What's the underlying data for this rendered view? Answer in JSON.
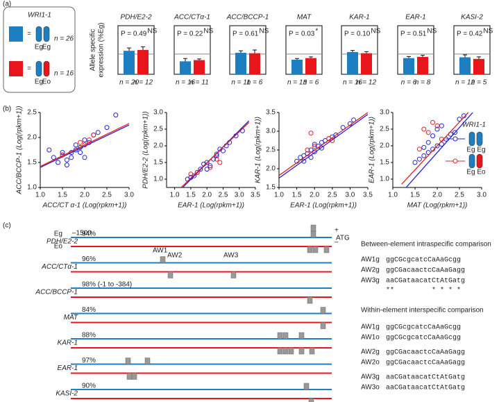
{
  "panel_labels": [
    "(a)",
    "(b)",
    "(c)"
  ],
  "legend_a": {
    "title": "WRI1-1",
    "items": [
      {
        "eq": "=",
        "n": "n = 26",
        "alleles": [
          "Eg",
          "Eg"
        ],
        "colors": [
          "#1d7fc1",
          "#1d7fc1"
        ],
        "swatch": "#1d7fc1"
      },
      {
        "eq": "=",
        "n": "n = 16",
        "alleles": [
          "Eg",
          "Eo"
        ],
        "colors": [
          "#1d7fc1",
          "#e8161b"
        ],
        "swatch": "#e8161b"
      }
    ]
  },
  "chart_data": [
    {
      "type": "bar",
      "title": "PDH/E2-2",
      "ylabel": [
        "Allele specific",
        "expression (%Eg)"
      ],
      "values": [
        58,
        60
      ],
      "errors": [
        7,
        8
      ],
      "colors": [
        "#1d7fc1",
        "#e8161b"
      ],
      "n_labels": [
        "n = 20",
        "n = 12"
      ],
      "p_label": "P = 0.49",
      "p_sup": "NS",
      "ylim": [
        0,
        120
      ],
      "ref_line": 50
    },
    {
      "type": "bar",
      "title": "ACC/CTα-1",
      "values": [
        32,
        35
      ],
      "errors": [
        7,
        3
      ],
      "colors": [
        "#1d7fc1",
        "#e8161b"
      ],
      "n_labels": [
        "n = 16",
        "n = 11"
      ],
      "p_label": "P = 0.22",
      "p_sup": "NS",
      "ylim": [
        0,
        120
      ],
      "ref_line": 50
    },
    {
      "type": "bar",
      "title": "ACC/BCCP-1",
      "values": [
        53,
        52
      ],
      "errors": [
        5,
        8
      ],
      "colors": [
        "#1d7fc1",
        "#e8161b"
      ],
      "n_labels": [
        "n = 11",
        "n = 6"
      ],
      "p_label": "P = 0.61",
      "p_sup": "NS",
      "ylim": [
        0,
        120
      ],
      "ref_line": 50
    },
    {
      "type": "bar",
      "title": "MAT",
      "values": [
        36,
        40
      ],
      "errors": [
        3,
        3
      ],
      "colors": [
        "#1d7fc1",
        "#e8161b"
      ],
      "n_labels": [
        "n = 13",
        "n = 6"
      ],
      "p_label": "P = 0.03",
      "p_sup": "*",
      "ylim": [
        0,
        120
      ],
      "ref_line": 50
    },
    {
      "type": "bar",
      "title": "KAR-1",
      "values": [
        55,
        52
      ],
      "errors": [
        4,
        4
      ],
      "colors": [
        "#1d7fc1",
        "#e8161b"
      ],
      "n_labels": [
        "n = 16",
        "n = 12"
      ],
      "p_label": "P = 0.10",
      "p_sup": "NS",
      "ylim": [
        0,
        120
      ],
      "ref_line": 50
    },
    {
      "type": "bar",
      "title": "EAR-1",
      "values": [
        40,
        43
      ],
      "errors": [
        4,
        4
      ],
      "colors": [
        "#1d7fc1",
        "#e8161b"
      ],
      "n_labels": [
        "n = 6",
        "n = 8"
      ],
      "p_label": "P = 0.51",
      "p_sup": "NS",
      "ylim": [
        0,
        120
      ],
      "ref_line": 50
    },
    {
      "type": "bar",
      "title": "KASI-2",
      "values": [
        42,
        38
      ],
      "errors": [
        6,
        5
      ],
      "colors": [
        "#1d7fc1",
        "#e8161b"
      ],
      "n_labels": [
        "n = 12",
        "n = 5"
      ],
      "p_label": "P = 0.42",
      "p_sup": "NS",
      "ylim": [
        0,
        120
      ],
      "ref_line": 50
    },
    {
      "type": "scatter",
      "xlabel": "ACC/CT α-1 (Log(rpkm+1))",
      "ylabel": "ACC/BCCP-1 (Log(rpkm+1))",
      "xlim": [
        1,
        3
      ],
      "ylim": [
        1,
        2.5
      ],
      "xticks": [
        {
          "value": 1,
          "label": "1.0"
        },
        1.5,
        {
          "value": 2,
          "label": "2.0"
        },
        2.5,
        {
          "value": 3,
          "label": "3.0"
        }
      ],
      "yticks": [
        {
          "value": 1,
          "label": "1.0"
        },
        1.5,
        {
          "value": 2,
          "label": "2.0"
        },
        2.5
      ],
      "series": [
        {
          "name": "Eg Eg",
          "color": "#2323d0",
          "x": [
            1.3,
            1.4,
            1.5,
            1.6,
            1.7,
            1.8,
            1.9,
            2.0,
            2.1,
            2.2,
            1.5,
            1.6,
            1.8,
            2.0,
            2.3,
            2.5,
            2.7,
            1.2,
            1.7,
            1.9
          ],
          "y": [
            1.6,
            1.5,
            1.65,
            1.55,
            1.7,
            1.75,
            1.8,
            1.6,
            1.9,
            2.05,
            1.7,
            1.45,
            1.85,
            1.95,
            2.1,
            2.2,
            2.45,
            1.75,
            1.6,
            1.7
          ],
          "fit_x": [
            1,
            3
          ],
          "fit_y": [
            1.4,
            2.25
          ]
        },
        {
          "name": "Eg Eo",
          "color": "#e02020",
          "x": [
            1.9,
            2.1,
            2.2,
            1.5,
            2.0
          ],
          "y": [
            1.9,
            1.95,
            2.05,
            1.65,
            1.85
          ],
          "fit_x": [
            1,
            3
          ],
          "fit_y": [
            1.42,
            2.28
          ]
        }
      ]
    },
    {
      "type": "scatter",
      "xlabel": "EAR-1 (Log(rpkm+1))",
      "ylabel": "PDH/E2-2 (Log(rpkm+1))",
      "xlim": [
        0.75,
        3.5
      ],
      "ylim": [
        0.75,
        3
      ],
      "xticks": [
        {
          "value": 1,
          "label": "1.0"
        },
        1.5,
        {
          "value": 2,
          "label": "2.0"
        },
        2.5,
        {
          "value": 3,
          "label": "3.0"
        },
        3.5
      ],
      "yticks": [
        {
          "value": 1,
          "label": "1.0"
        },
        1.5,
        {
          "value": 2,
          "label": "2.0"
        },
        2.5,
        {
          "value": 3,
          "label": "3.0"
        }
      ],
      "series": [
        {
          "color": "#2323d0",
          "x": [
            1.5,
            1.7,
            1.8,
            1.9,
            2.0,
            2.1,
            2.2,
            2.3,
            2.4,
            2.5,
            2.7,
            2.9,
            3.1,
            1.6,
            2.0,
            2.3,
            2.6,
            1.4
          ],
          "y": [
            1.05,
            1.2,
            1.3,
            1.45,
            1.5,
            1.4,
            1.6,
            1.75,
            1.9,
            1.85,
            2.1,
            2.3,
            2.45,
            1.1,
            1.3,
            1.7,
            2.0,
            1.0
          ],
          "fit_x": [
            1.25,
            3.3
          ],
          "fit_y": [
            0.75,
            2.75
          ]
        },
        {
          "color": "#e02020",
          "x": [
            1.5,
            1.7,
            2.1,
            2.3,
            2.4
          ],
          "y": [
            1.15,
            1.2,
            1.35,
            1.6,
            1.5
          ],
          "fit_x": [
            1.2,
            3.3
          ],
          "fit_y": [
            0.75,
            2.7
          ]
        }
      ]
    },
    {
      "type": "scatter",
      "xlabel": "EAR-1 (Log(rpkm+1))",
      "ylabel": "KAR-1 (Log(rpkm+1))",
      "xlim": [
        1,
        3.5
      ],
      "ylim": [
        1.5,
        3.5
      ],
      "xticks": [
        {
          "value": 1,
          "label": "1.0"
        },
        1.5,
        {
          "value": 2,
          "label": "2.0"
        },
        2.5,
        {
          "value": 3,
          "label": "3.0"
        },
        3.5
      ],
      "yticks": [
        1.5,
        {
          "value": 2,
          "label": "2.0"
        },
        2.5,
        {
          "value": 3,
          "label": "3.0"
        },
        3.5
      ],
      "series": [
        {
          "color": "#2323d0",
          "x": [
            1.5,
            1.6,
            1.7,
            1.8,
            1.9,
            2.0,
            2.1,
            2.2,
            2.3,
            2.4,
            2.6,
            2.8,
            3.0,
            3.1,
            1.7,
            1.9,
            2.0,
            2.2,
            2.5
          ],
          "y": [
            2.2,
            2.3,
            2.35,
            2.4,
            2.5,
            2.45,
            2.6,
            2.7,
            2.75,
            2.8,
            2.9,
            3.1,
            3.2,
            3.3,
            2.2,
            2.3,
            2.65,
            2.55,
            2.85
          ],
          "fit_x": [
            1,
            3.5
          ],
          "fit_y": [
            1.75,
            3.45
          ]
        },
        {
          "color": "#e02020",
          "x": [
            1.9,
            2.0,
            2.4,
            2.5,
            1.8
          ],
          "y": [
            2.95,
            2.6,
            2.8,
            2.75,
            2.5
          ],
          "fit_x": [
            1,
            3.5
          ],
          "fit_y": [
            1.82,
            3.5
          ]
        }
      ]
    },
    {
      "type": "scatter",
      "xlabel": "MAT (Log(rpkm+1))",
      "ylabel": "EAR-1 (Log(rpkm+1))",
      "xlim": [
        1,
        3
      ],
      "ylim": [
        0.75,
        3
      ],
      "xticks": [
        {
          "value": 1,
          "label": "1.0"
        },
        1.5,
        {
          "value": 2,
          "label": "2.0"
        },
        2.5,
        {
          "value": 3,
          "label": "3.0"
        }
      ],
      "yticks": [
        {
          "value": 1,
          "label": "1.0"
        },
        1.5,
        {
          "value": 2,
          "label": "2.0"
        },
        2.5,
        {
          "value": 3,
          "label": "3.0"
        }
      ],
      "series": [
        {
          "color": "#2323d0",
          "x": [
            1.5,
            1.6,
            1.7,
            1.8,
            1.9,
            2.0,
            2.1,
            2.2,
            2.3,
            2.4,
            1.7,
            1.8,
            1.9,
            2.0,
            2.1,
            2.5,
            2.6
          ],
          "y": [
            1.5,
            1.6,
            1.7,
            1.8,
            1.9,
            2.0,
            2.05,
            2.2,
            2.35,
            2.4,
            1.95,
            2.1,
            2.3,
            2.5,
            2.6,
            2.8,
            2.9
          ],
          "fit_x": [
            1.3,
            2.8
          ],
          "fit_y": [
            0.75,
            3
          ]
        },
        {
          "color": "#e02020",
          "x": [
            1.7,
            1.8,
            1.9,
            2.0,
            2.1,
            1.6
          ],
          "y": [
            2.5,
            2.4,
            2.7,
            2.6,
            2.2,
            1.9
          ],
          "fit_x": [
            1.2,
            2.7
          ],
          "fit_y": [
            0.85,
            3
          ]
        }
      ]
    }
  ],
  "legend_b": {
    "title": "WRI1-1"
  },
  "panel_c": {
    "eg": "Eg",
    "start": "–1500",
    "eo": "Eo",
    "plus": "+",
    "minus": "–",
    "atg": "ATG",
    "aw_labels": [
      "AW1",
      "AW2",
      "AW3"
    ],
    "genes": [
      {
        "name": "PDH/E2-2",
        "identity": "94%"
      },
      {
        "name": "ACC/CTα-1",
        "identity": "96%"
      },
      {
        "name": "ACC/BCCP-1",
        "identity": "98% (-1 to -384)"
      },
      {
        "name": "MAT",
        "identity": "84%"
      },
      {
        "name": "KAR-1",
        "identity": "88%"
      },
      {
        "name": "EAR-1",
        "identity": "97%"
      },
      {
        "name": "KASI-2",
        "identity": "90%"
      }
    ],
    "between": {
      "title": "Between-element intraspecific comparison",
      "rows": [
        {
          "id": "AW1g",
          "seq": "ggCGcgcatcCaAaGcgg"
        },
        {
          "id": "AW2g",
          "seq": "ggCGacaactcCaAaGagg"
        },
        {
          "id": "AW3g",
          "seq": "aaCGataacatCtAtGatg"
        }
      ],
      "stars": "**         * * * *"
    },
    "within": {
      "title": "Within-element interspecific comparison",
      "rows": [
        {
          "id": "AW1g",
          "seq": "ggCGcgcatcCaAaGcgg"
        },
        {
          "id": "AW1o",
          "seq": "ggCGcgcatcCaAaGcgg"
        },
        {
          "id": "AW2g",
          "seq": "ggCGacaactcCaAaGagg"
        },
        {
          "id": "AW2o",
          "seq": "ggCGacaactcCaAaGagg"
        },
        {
          "id": "AW3g",
          "seq": "aaCGataacatCtAtGatg"
        },
        {
          "id": "AW3o",
          "seq": "aaCGataacatCtAtGatg"
        }
      ]
    }
  }
}
